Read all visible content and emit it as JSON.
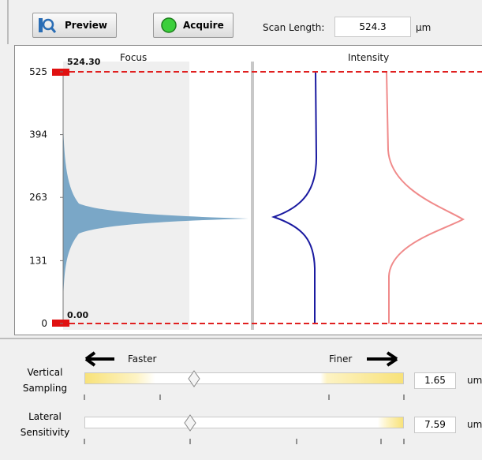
{
  "toolbar": {
    "preview": "Preview",
    "acquire": "Acquire",
    "scan_length_label": "Scan Length:",
    "scan_length_value": "524.3",
    "scan_length_unit": "µm"
  },
  "plot": {
    "focus_title": "Focus",
    "intensity_title": "Intensity",
    "top_label": "524.30",
    "bottom_label": "0.00",
    "ylim": [
      0,
      525
    ],
    "yticks": [
      0,
      131,
      263,
      394,
      525
    ]
  },
  "sliders": {
    "arrow_left": "Faster",
    "arrow_right": "Finer",
    "items": [
      {
        "label": "Vertical Sampling",
        "value": "1.65",
        "unit": "um"
      },
      {
        "label": "Lateral Sensitivity",
        "value": "7.59",
        "unit": "um"
      }
    ]
  }
}
